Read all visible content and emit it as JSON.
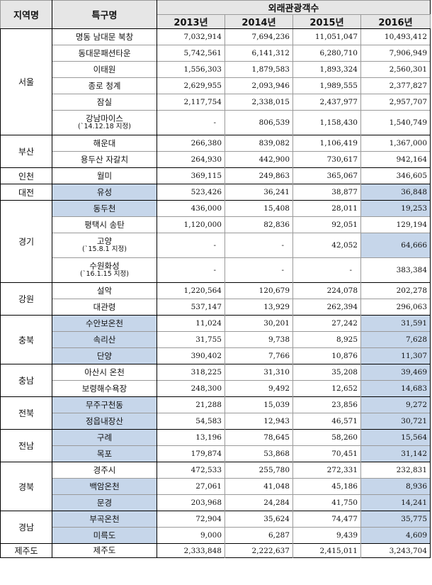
{
  "headers": {
    "region": "지역명",
    "zone": "특구명",
    "visitors": "외래관광객수",
    "years": [
      "2013년",
      "2014년",
      "2015년",
      "2016년"
    ]
  },
  "groups": [
    {
      "region": "서울",
      "rows": [
        {
          "name": "명동 남대문 북창",
          "values": [
            "7,032,914",
            "7,694,236",
            "11,051,047",
            "10,493,412"
          ],
          "hl": [
            false,
            false,
            false,
            false,
            false
          ]
        },
        {
          "name": "동대문패션타운",
          "values": [
            "5,742,561",
            "6,141,312",
            "6,280,710",
            "7,906,949"
          ],
          "hl": [
            false,
            false,
            false,
            false,
            false
          ]
        },
        {
          "name": "이태원",
          "values": [
            "1,556,303",
            "1,879,583",
            "1,893,324",
            "2,560,301"
          ],
          "hl": [
            false,
            false,
            false,
            false,
            false
          ]
        },
        {
          "name": "종로 청계",
          "values": [
            "2,629,955",
            "2,093,946",
            "1,989,555",
            "2,377,827"
          ],
          "hl": [
            false,
            false,
            false,
            false,
            false
          ]
        },
        {
          "name": "잠실",
          "values": [
            "2,117,754",
            "2,338,015",
            "2,437,977",
            "2,957,707"
          ],
          "hl": [
            false,
            false,
            false,
            false,
            false
          ]
        },
        {
          "name": "강남마이스",
          "sub": "(`14.12.18 지정)",
          "values": [
            "-",
            "806,539",
            "1,158,430",
            "1,540,749"
          ],
          "hl": [
            false,
            false,
            false,
            false,
            false
          ]
        }
      ]
    },
    {
      "region": "부산",
      "rows": [
        {
          "name": "해운대",
          "values": [
            "266,380",
            "839,082",
            "1,106,419",
            "1,367,000"
          ],
          "hl": [
            false,
            false,
            false,
            false,
            false
          ]
        },
        {
          "name": "용두산 자갈치",
          "values": [
            "264,930",
            "442,900",
            "730,617",
            "942,164"
          ],
          "hl": [
            false,
            false,
            false,
            false,
            false
          ]
        }
      ]
    },
    {
      "region": "인천",
      "rows": [
        {
          "name": "월미",
          "values": [
            "369,115",
            "249,863",
            "365,067",
            "346,605"
          ],
          "hl": [
            false,
            false,
            false,
            false,
            false
          ]
        }
      ]
    },
    {
      "region": "대전",
      "rows": [
        {
          "name": "유성",
          "values": [
            "523,426",
            "36,241",
            "38,877",
            "36,848"
          ],
          "hl": [
            true,
            false,
            false,
            false,
            true
          ]
        }
      ]
    },
    {
      "region": "경기",
      "rows": [
        {
          "name": "동두천",
          "values": [
            "436,000",
            "15,408",
            "28,011",
            "19,253"
          ],
          "hl": [
            true,
            false,
            false,
            false,
            true
          ]
        },
        {
          "name": "평택시 송탄",
          "values": [
            "1,120,000",
            "82,836",
            "92,051",
            "129,194"
          ],
          "hl": [
            false,
            false,
            false,
            false,
            false
          ]
        },
        {
          "name": "고양",
          "sub": "(`15.8.1 지정)",
          "values": [
            "-",
            "-",
            "42,052",
            "64,666"
          ],
          "hl": [
            false,
            false,
            false,
            false,
            true
          ]
        },
        {
          "name": "수원화성",
          "sub": "(`16.1.15 지정)",
          "values": [
            "-",
            "-",
            "-",
            "383,384"
          ],
          "hl": [
            false,
            false,
            false,
            false,
            false
          ]
        }
      ]
    },
    {
      "region": "강원",
      "rows": [
        {
          "name": "설악",
          "values": [
            "1,220,564",
            "120,679",
            "224,078",
            "202,278"
          ],
          "hl": [
            false,
            false,
            false,
            false,
            false
          ]
        },
        {
          "name": "대관령",
          "values": [
            "537,147",
            "13,929",
            "262,394",
            "296,063"
          ],
          "hl": [
            false,
            false,
            false,
            false,
            false
          ]
        }
      ]
    },
    {
      "region": "충북",
      "rows": [
        {
          "name": "수안보온천",
          "values": [
            "11,024",
            "30,201",
            "27,242",
            "31,591"
          ],
          "hl": [
            true,
            false,
            false,
            false,
            true
          ]
        },
        {
          "name": "속리산",
          "values": [
            "31,755",
            "9,738",
            "8,925",
            "7,628"
          ],
          "hl": [
            true,
            false,
            false,
            false,
            true
          ]
        },
        {
          "name": "단양",
          "values": [
            "390,402",
            "7,766",
            "10,876",
            "11,307"
          ],
          "hl": [
            true,
            false,
            false,
            false,
            true
          ]
        }
      ]
    },
    {
      "region": "충남",
      "rows": [
        {
          "name": "아산시 온천",
          "values": [
            "318,225",
            "31,310",
            "35,208",
            "39,469"
          ],
          "hl": [
            false,
            false,
            false,
            false,
            true
          ]
        },
        {
          "name": "보령해수욕장",
          "values": [
            "248,300",
            "9,492",
            "12,652",
            "14,683"
          ],
          "hl": [
            false,
            false,
            false,
            false,
            true
          ]
        }
      ]
    },
    {
      "region": "전북",
      "rows": [
        {
          "name": "무주구천동",
          "values": [
            "21,288",
            "15,039",
            "23,856",
            "9,272"
          ],
          "hl": [
            true,
            false,
            false,
            false,
            true
          ]
        },
        {
          "name": "정읍내장산",
          "values": [
            "54,583",
            "12,943",
            "46,571",
            "30,721"
          ],
          "hl": [
            true,
            false,
            false,
            false,
            true
          ]
        }
      ]
    },
    {
      "region": "전남",
      "rows": [
        {
          "name": "구례",
          "values": [
            "13,196",
            "78,645",
            "58,260",
            "15,564"
          ],
          "hl": [
            true,
            false,
            false,
            false,
            true
          ]
        },
        {
          "name": "목포",
          "values": [
            "179,874",
            "53,868",
            "70,451",
            "31,142"
          ],
          "hl": [
            true,
            false,
            false,
            false,
            true
          ]
        }
      ]
    },
    {
      "region": "경북",
      "rows": [
        {
          "name": "경주시",
          "values": [
            "472,533",
            "255,780",
            "272,331",
            "232,831"
          ],
          "hl": [
            false,
            false,
            false,
            false,
            false
          ]
        },
        {
          "name": "백암온천",
          "values": [
            "27,061",
            "41,048",
            "45,186",
            "8,936"
          ],
          "hl": [
            true,
            false,
            false,
            false,
            true
          ]
        },
        {
          "name": "문경",
          "values": [
            "203,968",
            "24,284",
            "41,750",
            "14,241"
          ],
          "hl": [
            true,
            false,
            false,
            false,
            true
          ]
        }
      ]
    },
    {
      "region": "경남",
      "rows": [
        {
          "name": "부곡온천",
          "values": [
            "72,904",
            "35,624",
            "74,477",
            "35,775"
          ],
          "hl": [
            true,
            false,
            false,
            false,
            true
          ]
        },
        {
          "name": "미륵도",
          "values": [
            "9,000",
            "6,287",
            "9,439",
            "4,609"
          ],
          "hl": [
            true,
            false,
            false,
            false,
            true
          ]
        }
      ]
    },
    {
      "region": "제주도",
      "rows": [
        {
          "name": "제주도",
          "values": [
            "2,333,848",
            "2,222,637",
            "2,415,011",
            "3,243,704"
          ],
          "hl": [
            false,
            false,
            false,
            false,
            false
          ]
        }
      ]
    }
  ],
  "colors": {
    "highlight": "#c6d6ea",
    "header_bg": "#e6e6e6",
    "border": "#000000",
    "inner_border": "#9a9a9a"
  }
}
